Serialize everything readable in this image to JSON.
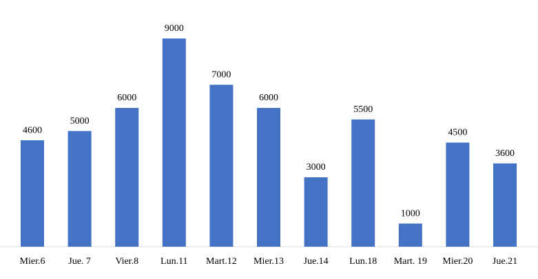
{
  "chart_data": {
    "type": "bar",
    "categories": [
      "Mier.6",
      "Jue. 7",
      "Vier.8",
      "Lun.11",
      "Mart.12",
      "Mier.13",
      "Jue.14",
      "Lun.18",
      "Mart. 19",
      "Mier.20",
      "Jue.21"
    ],
    "values": [
      4600,
      5000,
      6000,
      9000,
      7000,
      6000,
      3000,
      5500,
      1000,
      4500,
      3600
    ],
    "color": "#4472c4",
    "ylim": [
      0,
      9000
    ]
  }
}
